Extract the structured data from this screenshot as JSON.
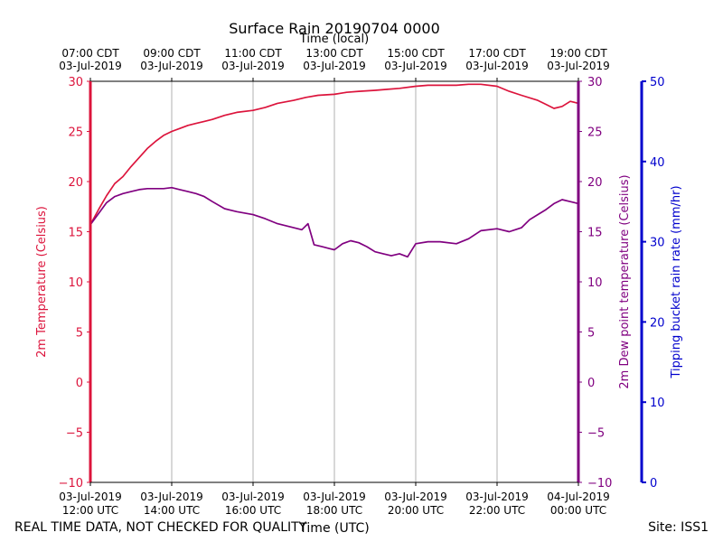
{
  "chart_data": {
    "type": "line",
    "title": "Surface Rain 20190704 0000",
    "top_axis_label": "Time (local)",
    "xlabel": "Time (UTC)",
    "left_ylabel": "2m Temperature (Celsius)",
    "right_ylabel": "2m Dew point temperature (Celsius)",
    "far_right_ylabel": "Tipping bucket rain rate (mm/hr)",
    "footer_left": "REAL TIME DATA, NOT CHECKED FOR QUALITY",
    "footer_right": "Site: ISS1",
    "xlim_hours": [
      12,
      24
    ],
    "ylim_temp": [
      -10,
      30
    ],
    "ylim_rain": [
      0,
      50
    ],
    "grid": "vertical",
    "y_ticks_temp": [
      -10,
      -5,
      0,
      5,
      10,
      15,
      20,
      25,
      30
    ],
    "y_ticks_temp_labels": [
      "−10",
      "−5",
      "0",
      "5",
      "10",
      "15",
      "20",
      "25",
      "30"
    ],
    "y_ticks_rain": [
      0,
      10,
      20,
      30,
      40,
      50
    ],
    "x_ticks_hours": [
      12,
      14,
      16,
      18,
      20,
      22,
      24
    ],
    "x_tick_labels_utc": [
      [
        "03-Jul-2019",
        "12:00 UTC"
      ],
      [
        "03-Jul-2019",
        "14:00 UTC"
      ],
      [
        "03-Jul-2019",
        "16:00 UTC"
      ],
      [
        "03-Jul-2019",
        "18:00 UTC"
      ],
      [
        "03-Jul-2019",
        "20:00 UTC"
      ],
      [
        "03-Jul-2019",
        "22:00 UTC"
      ],
      [
        "04-Jul-2019",
        "00:00 UTC"
      ]
    ],
    "x_tick_labels_local": [
      [
        "07:00 CDT",
        "03-Jul-2019"
      ],
      [
        "09:00 CDT",
        "03-Jul-2019"
      ],
      [
        "11:00 CDT",
        "03-Jul-2019"
      ],
      [
        "13:00 CDT",
        "03-Jul-2019"
      ],
      [
        "15:00 CDT",
        "03-Jul-2019"
      ],
      [
        "17:00 CDT",
        "03-Jul-2019"
      ],
      [
        "19:00 CDT",
        "03-Jul-2019"
      ]
    ],
    "colors": {
      "temperature": "#dc143c",
      "dewpoint": "#800080",
      "rain": "#0000cd",
      "grid": "#b0b0b0"
    },
    "series": [
      {
        "x_hours": [
          12.0,
          12.2,
          12.4,
          12.6,
          12.8,
          13.0,
          13.2,
          13.4,
          13.6,
          13.8,
          14.0,
          14.2,
          14.4,
          14.6,
          14.8,
          15.0,
          15.3,
          15.6,
          16.0,
          16.3,
          16.6,
          17.0,
          17.3,
          17.6,
          18.0,
          18.3,
          18.6,
          19.0,
          19.3,
          19.6,
          20.0,
          20.3,
          20.6,
          21.0,
          21.3,
          21.6,
          22.0,
          22.3,
          22.6,
          23.0,
          23.2,
          23.4,
          23.6,
          23.8,
          24.0
        ],
        "values": [
          15.7,
          17.2,
          18.6,
          19.8,
          20.5,
          21.5,
          22.4,
          23.3,
          24.0,
          24.6,
          25.0,
          25.3,
          25.6,
          25.8,
          26.0,
          26.2,
          26.6,
          26.9,
          27.1,
          27.4,
          27.8,
          28.1,
          28.4,
          28.6,
          28.7,
          28.9,
          29.0,
          29.1,
          29.2,
          29.3,
          29.5,
          29.6,
          29.6,
          29.6,
          29.7,
          29.7,
          29.5,
          29.0,
          28.6,
          28.1,
          27.7,
          27.3,
          27.5,
          28.0,
          27.8
        ]
      },
      {
        "x_hours": [
          12.0,
          12.2,
          12.4,
          12.6,
          12.8,
          13.0,
          13.2,
          13.4,
          13.6,
          13.8,
          14.0,
          14.2,
          14.4,
          14.6,
          14.8,
          15.0,
          15.3,
          15.6,
          16.0,
          16.3,
          16.6,
          16.8,
          17.0,
          17.2,
          17.35,
          17.5,
          17.7,
          17.9,
          18.0,
          18.2,
          18.4,
          18.6,
          18.8,
          19.0,
          19.2,
          19.4,
          19.6,
          19.8,
          20.0,
          20.3,
          20.6,
          21.0,
          21.3,
          21.6,
          22.0,
          22.3,
          22.6,
          22.8,
          23.0,
          23.2,
          23.4,
          23.6,
          23.8,
          24.0
        ],
        "values": [
          15.7,
          16.8,
          17.9,
          18.5,
          18.8,
          19.0,
          19.2,
          19.3,
          19.3,
          19.3,
          19.4,
          19.2,
          19.0,
          18.8,
          18.5,
          18.0,
          17.3,
          17.0,
          16.7,
          16.3,
          15.8,
          15.6,
          15.4,
          15.2,
          15.8,
          13.7,
          13.5,
          13.3,
          13.2,
          13.8,
          14.1,
          13.9,
          13.5,
          13.0,
          12.8,
          12.6,
          12.8,
          12.5,
          13.8,
          14.0,
          14.0,
          13.8,
          14.3,
          15.1,
          15.3,
          15.0,
          15.4,
          16.2,
          16.7,
          17.2,
          17.8,
          18.2,
          18.0,
          17.8
        ]
      }
    ]
  }
}
